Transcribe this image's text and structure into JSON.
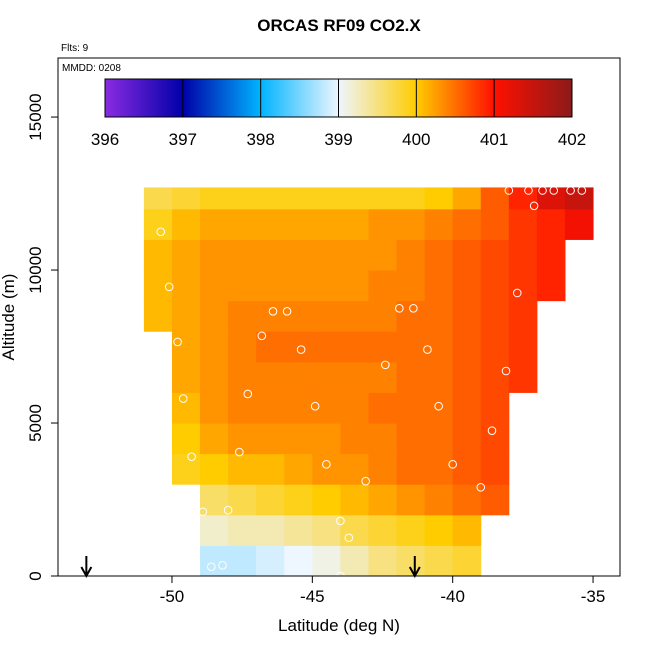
{
  "chart_data": {
    "type": "heatmap",
    "title": "ORCAS RF09 CO2.X",
    "xlabel": "Latitude (deg N)",
    "ylabel": "Altitude (m)",
    "annotations": [
      "Flts: 9",
      "MMDD: 0208"
    ],
    "xlim": [
      -54.06,
      -34.04
    ],
    "ylim": [
      0,
      16930
    ],
    "xticks": [
      -50,
      -45,
      -40,
      -35
    ],
    "yticks": [
      0,
      5000,
      10000,
      15000
    ],
    "clim": [
      396,
      402
    ],
    "colorbar_ticks": [
      396,
      397,
      398,
      399,
      400,
      401,
      402
    ],
    "colorscale": [
      {
        "value": 396,
        "color": "#8a2be2"
      },
      {
        "value": 397,
        "color": "#0000a8"
      },
      {
        "value": 398,
        "color": "#00b4ff"
      },
      {
        "value": 399,
        "color": "#eef6ff"
      },
      {
        "value": 400,
        "color": "#ffcc00"
      },
      {
        "value": 401,
        "color": "#ff1000"
      },
      {
        "value": 402,
        "color": "#8b1a1a"
      }
    ],
    "x_edges": [
      -51,
      -50,
      -49,
      -48,
      -47,
      -46,
      -45,
      -44,
      -43,
      -42,
      -41,
      -40,
      -39,
      -38,
      -37,
      -36,
      -35
    ],
    "y_edges": [
      0,
      1000,
      2000,
      3000,
      4000,
      5000,
      6000,
      7000,
      8000,
      9000,
      10000,
      11000,
      12000,
      12700
    ],
    "z": [
      [
        null,
        null,
        398.8,
        398.8,
        398.9,
        399,
        399.1,
        399.3,
        399.5,
        399.6,
        399.7,
        399.8,
        null,
        null,
        null,
        null
      ],
      [
        null,
        null,
        399.2,
        399.3,
        399.3,
        399.4,
        399.5,
        399.7,
        399.8,
        399.9,
        400,
        400.1,
        null,
        null,
        null,
        null
      ],
      [
        null,
        null,
        399.6,
        399.7,
        399.8,
        399.9,
        400,
        400.1,
        400.2,
        400.3,
        400.4,
        400.5,
        400.6,
        null,
        null,
        null
      ],
      [
        null,
        399.9,
        400,
        400.1,
        400.1,
        400.2,
        400.3,
        400.3,
        400.4,
        400.5,
        400.5,
        400.6,
        400.7,
        null,
        null,
        null
      ],
      [
        null,
        400,
        400.2,
        400.3,
        400.3,
        400.3,
        400.3,
        400.4,
        400.4,
        400.5,
        400.5,
        400.6,
        400.7,
        null,
        null,
        null
      ],
      [
        null,
        400.1,
        400.3,
        400.4,
        400.4,
        400.4,
        400.4,
        400.4,
        400.5,
        400.5,
        400.5,
        400.6,
        400.7,
        null,
        null,
        null
      ],
      [
        null,
        400.2,
        400.3,
        400.4,
        400.4,
        400.4,
        400.4,
        400.4,
        400.4,
        400.5,
        400.5,
        400.6,
        400.7,
        400.8,
        null,
        null
      ],
      [
        null,
        400.2,
        400.3,
        400.4,
        400.5,
        400.5,
        400.5,
        400.5,
        400.5,
        400.5,
        400.5,
        400.6,
        400.7,
        400.8,
        null,
        null
      ],
      [
        400.1,
        400.2,
        400.3,
        400.4,
        400.4,
        400.4,
        400.4,
        400.4,
        400.4,
        400.5,
        400.5,
        400.6,
        400.7,
        400.8,
        null,
        null
      ],
      [
        400.1,
        400.2,
        400.3,
        400.3,
        400.3,
        400.3,
        400.3,
        400.3,
        400.4,
        400.4,
        400.5,
        400.6,
        400.7,
        400.8,
        400.9,
        null
      ],
      [
        400.1,
        400.2,
        400.3,
        400.3,
        400.3,
        400.3,
        400.3,
        400.3,
        400.3,
        400.4,
        400.5,
        400.6,
        400.7,
        400.8,
        400.9,
        null
      ],
      [
        399.9,
        400.1,
        400.2,
        400.2,
        400.2,
        400.2,
        400.2,
        400.2,
        400.3,
        400.3,
        400.4,
        400.5,
        400.6,
        400.8,
        400.9,
        401.1
      ],
      [
        399.7,
        399.8,
        399.9,
        399.9,
        399.9,
        399.9,
        399.9,
        399.9,
        399.9,
        399.9,
        400,
        400.2,
        400.6,
        400.9,
        401.3,
        401.5
      ]
    ],
    "samples": {
      "x": [
        -50.4,
        -50.1,
        -49.8,
        -49.6,
        -49.3,
        -48.9,
        -48.6,
        -48.2,
        -48,
        -47.6,
        -47.3,
        -46.8,
        -46.4,
        -45.9,
        -45.4,
        -44.9,
        -44.5,
        -44,
        -43.7,
        -43.1,
        -42.4,
        -41.9,
        -41.4,
        -40.9,
        -40.5,
        -40,
        -39,
        -38.6,
        -38.1,
        -37.7,
        -37.1,
        -36.4,
        -35.8,
        -35.4,
        -38,
        -37.3,
        -36.8,
        -44
      ],
      "y": [
        11250,
        9450,
        7650,
        5800,
        3900,
        2100,
        300,
        350,
        2150,
        4050,
        5950,
        7850,
        8650,
        8650,
        7400,
        5550,
        3650,
        1800,
        1250,
        3100,
        6900,
        8750,
        8750,
        7400,
        5550,
        3650,
        2900,
        4750,
        6700,
        9250,
        12100,
        12600,
        12600,
        12600,
        12600,
        12600,
        12600,
        0
      ]
    },
    "arrows_x": [
      -53.05,
      -41.35
    ]
  }
}
